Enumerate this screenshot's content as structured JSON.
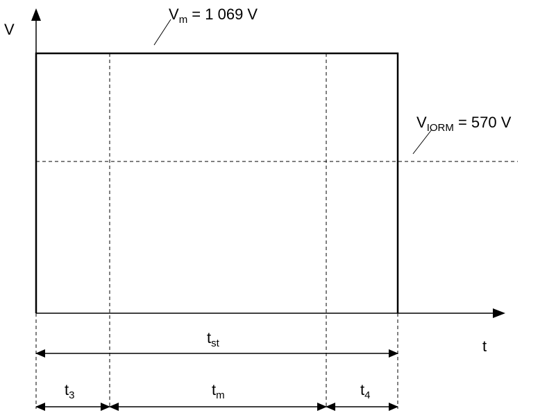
{
  "axes": {
    "y_label": "V",
    "x_label": "t"
  },
  "annotations": {
    "vm": {
      "symbol": "V",
      "subscript": "m",
      "rest": " = 1 069 V"
    },
    "viorm": {
      "symbol": "V",
      "subscript": "IORM",
      "rest": " = 570 V"
    }
  },
  "intervals": {
    "tst": {
      "symbol": "t",
      "subscript": "st"
    },
    "t3": {
      "symbol": "t",
      "subscript": "3"
    },
    "tm": {
      "symbol": "t",
      "subscript": "m"
    },
    "t4": {
      "symbol": "t",
      "subscript": "4"
    }
  }
}
